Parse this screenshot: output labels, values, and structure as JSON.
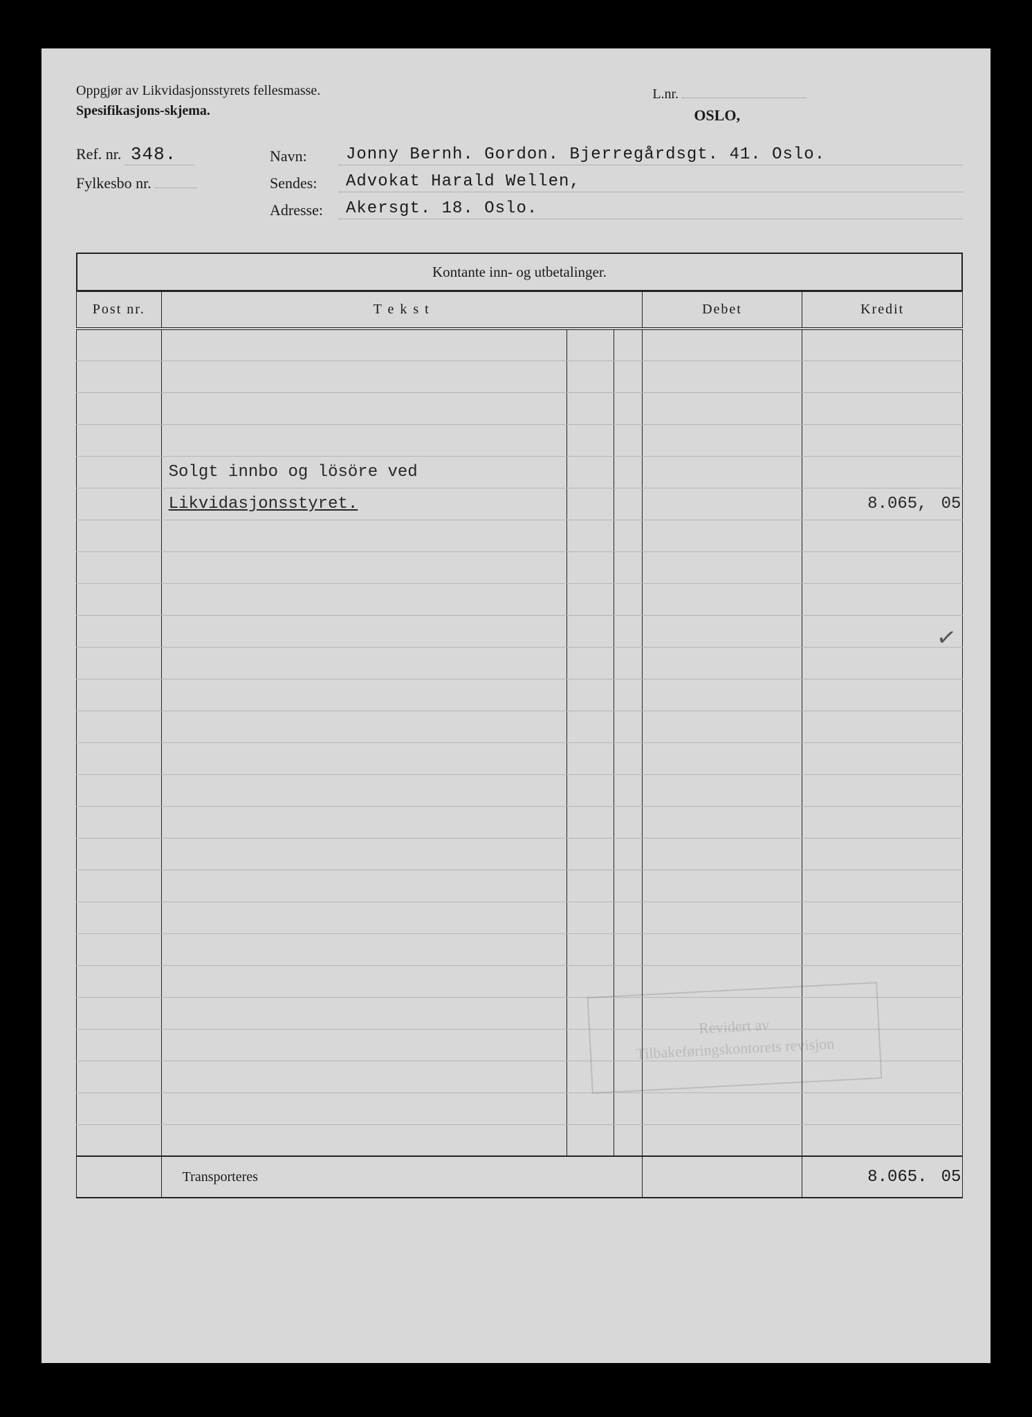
{
  "header": {
    "title1": "Oppgjør av Likvidasjonsstyrets fellesmasse.",
    "title2": "Spesifikasjons-skjema.",
    "lnr_label": "L.nr.",
    "oslo_label": "OSLO,",
    "ref_label": "Ref. nr.",
    "ref_value": "348.",
    "fylkesbo_label": "Fylkesbo nr.",
    "fylkesbo_value": "",
    "navn_label": "Navn:",
    "navn_value": "Jonny Bernh. Gordon. Bjerregårdsgt. 41. Oslo.",
    "sendes_label": "Sendes:",
    "sendes_value": "Advokat Harald Wellen,",
    "adresse_label": "Adresse:",
    "adresse_value": "Akersgt. 18. Oslo."
  },
  "ledger": {
    "section_title": "Kontante inn- og utbetalinger.",
    "col_post": "Post nr.",
    "col_tekst": "T e k s t",
    "col_debet": "Debet",
    "col_kredit": "Kredit",
    "rows": [
      {
        "text": "",
        "kred_main": "",
        "kred_cent": ""
      },
      {
        "text": "",
        "kred_main": "",
        "kred_cent": ""
      },
      {
        "text": "",
        "kred_main": "",
        "kred_cent": ""
      },
      {
        "text": "",
        "kred_main": "",
        "kred_cent": ""
      },
      {
        "text": "Solgt innbo og lösöre ved",
        "kred_main": "",
        "kred_cent": ""
      },
      {
        "text": "Likvidasjonsstyret.",
        "underline": true,
        "kred_main": "8.065,",
        "kred_cent": "05"
      },
      {
        "text": "",
        "kred_main": "",
        "kred_cent": ""
      },
      {
        "text": "",
        "kred_main": "",
        "kred_cent": ""
      },
      {
        "text": "",
        "kred_main": "",
        "kred_cent": ""
      },
      {
        "text": "",
        "kred_main": "",
        "kred_cent": ""
      },
      {
        "text": "",
        "kred_main": "",
        "kred_cent": ""
      },
      {
        "text": "",
        "kred_main": "",
        "kred_cent": ""
      },
      {
        "text": "",
        "kred_main": "",
        "kred_cent": ""
      },
      {
        "text": "",
        "kred_main": "",
        "kred_cent": ""
      },
      {
        "text": "",
        "kred_main": "",
        "kred_cent": ""
      },
      {
        "text": "",
        "kred_main": "",
        "kred_cent": ""
      },
      {
        "text": "",
        "kred_main": "",
        "kred_cent": ""
      },
      {
        "text": "",
        "kred_main": "",
        "kred_cent": ""
      },
      {
        "text": "",
        "kred_main": "",
        "kred_cent": ""
      },
      {
        "text": "",
        "kred_main": "",
        "kred_cent": ""
      },
      {
        "text": "",
        "kred_main": "",
        "kred_cent": ""
      },
      {
        "text": "",
        "kred_main": "",
        "kred_cent": ""
      },
      {
        "text": "",
        "kred_main": "",
        "kred_cent": ""
      },
      {
        "text": "",
        "kred_main": "",
        "kred_cent": ""
      },
      {
        "text": "",
        "kred_main": "",
        "kred_cent": ""
      },
      {
        "text": "",
        "kred_main": "",
        "kred_cent": ""
      }
    ],
    "footer_label": "Transporteres",
    "footer_kred_main": "8.065.",
    "footer_kred_cent": "05"
  },
  "stamp": {
    "line1": "Revidert av",
    "line2": "Tilbakeføringskontorets revisjon"
  },
  "colors": {
    "paper": "#d8d8d8",
    "bg": "#000000",
    "ink": "#1a1a1a",
    "rule_light": "#b5b5b5",
    "rule_heavy": "#222222",
    "dotted": "#888888"
  }
}
